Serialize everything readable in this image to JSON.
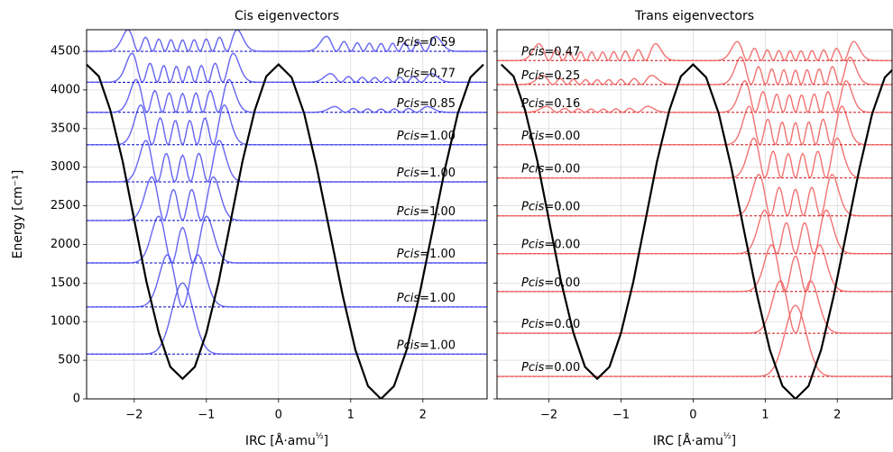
{
  "chart_data": [
    {
      "type": "line",
      "title": "Cis eigenvectors",
      "xlabel": "IRC [Å·amu½]",
      "ylabel": "Energy [cm⁻¹]",
      "xlim": [
        -2.66,
        2.89
      ],
      "xticks": [
        -2,
        -1,
        0,
        1,
        2
      ],
      "ylim": [
        0,
        4780
      ],
      "yticks": [
        0,
        500,
        1000,
        1500,
        2000,
        2500,
        3000,
        3500,
        4000,
        4500
      ],
      "grid": true,
      "potential": {
        "color": "#000000",
        "x": [
          -2.66,
          -2.49,
          -2.33,
          -2.16,
          -1.995,
          -1.83,
          -1.66,
          -1.5,
          -1.33,
          -1.16,
          -1.0,
          -0.83,
          -0.665,
          -0.5,
          -0.33,
          -0.17,
          0,
          0.18,
          0.355,
          0.53,
          0.71,
          0.89,
          1.065,
          1.24,
          1.42,
          1.6,
          1.775,
          1.95,
          2.13,
          2.31,
          2.485,
          2.66,
          2.84
        ],
        "values": [
          4330,
          4175,
          3734,
          3074,
          2295,
          1516,
          856,
          415,
          260,
          415,
          856,
          1516,
          2295,
          3074,
          3734,
          4175,
          4330,
          4165,
          3696,
          2994,
          2165,
          1336,
          634,
          165,
          0,
          165,
          634,
          1336,
          2165,
          2994,
          3696,
          4165,
          4330
        ]
      },
      "levels": {
        "color": "#4a4af0",
        "line_color": "#0000c8",
        "energies": [
          580,
          1190,
          1760,
          2310,
          2810,
          3290,
          3710,
          4100,
          4500
        ],
        "pcis": [
          1,
          1,
          1,
          1,
          1,
          1,
          0.85,
          0.77,
          0.59
        ],
        "value_labels": [
          "Pcis=1.00",
          "Pcis=1.00",
          "Pcis=1.00",
          "Pcis=1.00",
          "Pcis=1.00",
          "Pcis=1.00",
          "Pcis=0.85",
          "Pcis=0.77",
          "Pcis=0.59"
        ]
      }
    },
    {
      "type": "line",
      "title": "Trans eigenvectors",
      "xlabel": "IRC [Å·amu½]",
      "xlim": [
        -2.72,
        2.76
      ],
      "xticks": [
        -2,
        -1,
        0,
        1,
        2
      ],
      "ylim": [
        0,
        4780
      ],
      "grid": true,
      "potential": {
        "color": "#000000",
        "x": [
          -2.66,
          -2.49,
          -2.33,
          -2.16,
          -1.995,
          -1.83,
          -1.66,
          -1.5,
          -1.33,
          -1.16,
          -1.0,
          -0.83,
          -0.665,
          -0.5,
          -0.33,
          -0.17,
          0,
          0.18,
          0.355,
          0.53,
          0.71,
          0.89,
          1.065,
          1.24,
          1.42,
          1.6,
          1.775,
          1.95,
          2.13,
          2.31,
          2.485,
          2.66,
          2.84
        ],
        "values": [
          4330,
          4175,
          3734,
          3074,
          2295,
          1516,
          856,
          415,
          260,
          415,
          856,
          1516,
          2295,
          3074,
          3734,
          4175,
          4330,
          4165,
          3696,
          2994,
          2165,
          1336,
          634,
          165,
          0,
          165,
          634,
          1336,
          2165,
          2994,
          3696,
          4165,
          4330
        ]
      },
      "levels": {
        "color": "#f05a5a",
        "line_color": "#d01010",
        "energies": [
          290,
          850,
          1390,
          1880,
          2370,
          2860,
          3290,
          3710,
          4070,
          4380
        ],
        "pcis": [
          0,
          0,
          0,
          0,
          0,
          0,
          0,
          0.16,
          0.25,
          0.47
        ],
        "value_labels": [
          "Pcis=0.00",
          "Pcis=0.00",
          "Pcis=0.00",
          "Pcis=0.00",
          "Pcis=0.00",
          "Pcis=0.00",
          "Pcis=0.00",
          "Pcis=0.16",
          "Pcis=0.25",
          "Pcis=0.47"
        ]
      }
    }
  ]
}
